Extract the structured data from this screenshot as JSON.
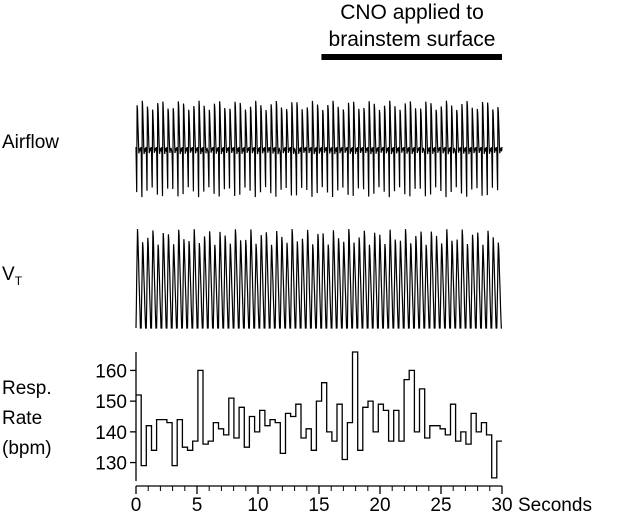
{
  "annotation": {
    "line1": "CNO applied to",
    "line2": "brainstem surface",
    "start_s": 15.2,
    "end_s": 30.0
  },
  "panels": {
    "airflow": {
      "label": "Airflow"
    },
    "vt": {
      "label_main": "V",
      "label_sub": "T"
    },
    "rate": {
      "label_line1": "Resp.",
      "label_line2": "Rate",
      "label_line3": "(bpm)"
    }
  },
  "chart_data": [
    {
      "type": "line",
      "name": "airflow",
      "x_unit": "Seconds",
      "xlim": [
        0,
        30
      ],
      "breath_count": 71,
      "note": "raw airflow trace, oscillating once per breath"
    },
    {
      "type": "line",
      "name": "tidal-volume",
      "x_unit": "Seconds",
      "xlim": [
        0,
        30
      ],
      "breath_count": 71,
      "note": "tidal volume trace, one peak per breath"
    },
    {
      "type": "line",
      "name": "respiratory-rate",
      "step": true,
      "ylabel": "Resp. Rate (bpm)",
      "ylim": [
        124,
        166
      ],
      "yticks": [
        130,
        140,
        150,
        160
      ],
      "xlabel": "Seconds",
      "xlim": [
        0,
        30
      ],
      "xticks": [
        0,
        5,
        10,
        15,
        20,
        25,
        30
      ],
      "xticklabels": [
        "0",
        "5",
        "10",
        "15",
        "20",
        "25",
        "30"
      ],
      "values": [
        152,
        129,
        142,
        134,
        144,
        144,
        143,
        129,
        144,
        135,
        134,
        137,
        160,
        136,
        137,
        143,
        141,
        139,
        151,
        138,
        148,
        135,
        145,
        140,
        147,
        142,
        144,
        143,
        133,
        146,
        145,
        149,
        138,
        141,
        134,
        150,
        156,
        140,
        137,
        149,
        131,
        143,
        166,
        134,
        148,
        150,
        140,
        149,
        147,
        137,
        147,
        137,
        157,
        160,
        140,
        154,
        138,
        142,
        142,
        141,
        139,
        149,
        137,
        140,
        136,
        146,
        140,
        143,
        139,
        125,
        137
      ]
    }
  ]
}
